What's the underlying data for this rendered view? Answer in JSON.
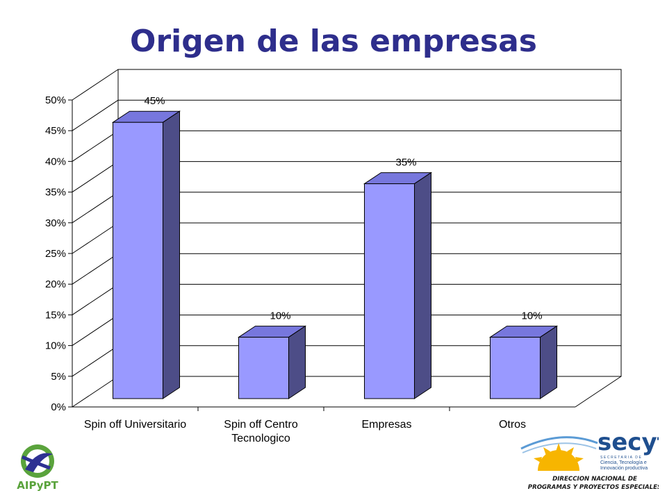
{
  "page": {
    "title": "Origen de las empresas"
  },
  "chart_data": {
    "type": "bar",
    "title": "Origen de las empresas",
    "categories": [
      "Spin off Universitario",
      "Spin off Centro Tecnologico",
      "Empresas",
      "Otros"
    ],
    "category_lines": [
      [
        "Spin off Universitario"
      ],
      [
        "Spin off Centro",
        "Tecnologico"
      ],
      [
        "Empresas"
      ],
      [
        "Otros"
      ]
    ],
    "values": [
      45,
      10,
      35,
      10
    ],
    "data_labels": [
      "45%",
      "10%",
      "35%",
      "10%"
    ],
    "ylim": [
      0,
      50
    ],
    "ytick_values": [
      0,
      5,
      10,
      15,
      20,
      25,
      30,
      35,
      40,
      45,
      50
    ],
    "ytick_labels": [
      "0%",
      "5%",
      "10%",
      "15%",
      "20%",
      "25%",
      "30%",
      "35%",
      "40%",
      "45%",
      "50%"
    ],
    "grid": true,
    "style": "3d-column",
    "colors": {
      "bar_front": "#9999ff",
      "bar_top": "#7777dd",
      "bar_side": "#4d4d87",
      "title": "#2e2e8c"
    }
  },
  "logos": {
    "left": {
      "name": "AIPyPT",
      "text": "AIPyPT"
    },
    "right": {
      "name": "secyt",
      "brand": "secyt",
      "subtitle_spaced": "SECRETARIA DE",
      "subtitle_lines": [
        "Ciencia, Tecnología e",
        "Innovación productiva"
      ],
      "direction_lines": [
        "DIRECCION NACIONAL DE",
        "PROGRAMAS Y PROYECTOS ESPECIALES"
      ]
    }
  }
}
